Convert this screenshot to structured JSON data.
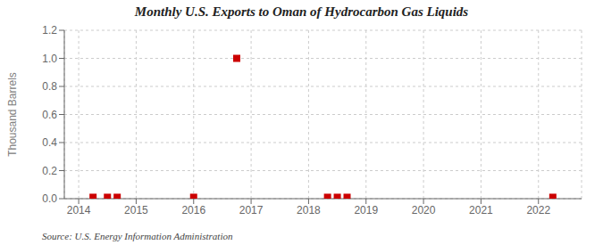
{
  "chart_data": {
    "type": "scatter",
    "title": "Monthly U.S. Exports to Oman of Hydrocarbon Gas Liquids",
    "ylabel": "Thousand Barrels",
    "annotation": "Source: U.S. Energy Information Administration",
    "x": [
      2014.25,
      2014.5,
      2014.67,
      2016.0,
      2016.75,
      2018.33,
      2018.5,
      2018.67,
      2022.25
    ],
    "values": [
      0.01,
      0.01,
      0.01,
      0.01,
      1.0,
      0.01,
      0.01,
      0.01,
      0.01
    ],
    "color": "#cc0000",
    "marker": "square",
    "grid": true,
    "xlim": [
      2013.75,
      2022.75
    ],
    "ylim": [
      0.0,
      1.2
    ],
    "xticks": [
      2014,
      2015,
      2016,
      2017,
      2018,
      2019,
      2020,
      2021,
      2022
    ],
    "yticks": [
      {
        "value": 0,
        "label": "0.0"
      },
      0.2,
      0.4,
      0.6,
      0.8,
      {
        "value": 1,
        "label": "1.0"
      },
      1.2
    ]
  }
}
